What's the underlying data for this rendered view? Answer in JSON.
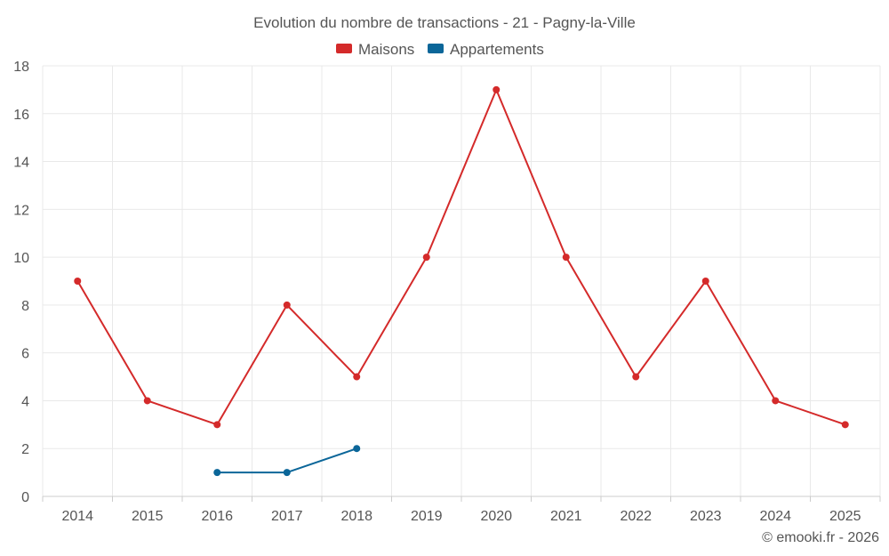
{
  "chart_data": {
    "type": "line",
    "title": "Evolution du nombre de transactions - 21 - Pagny-la-Ville",
    "x": [
      "2014",
      "2015",
      "2016",
      "2017",
      "2018",
      "2019",
      "2020",
      "2021",
      "2022",
      "2023",
      "2024",
      "2025"
    ],
    "ylim": [
      0,
      18
    ],
    "yticks": [
      0,
      2,
      4,
      6,
      8,
      10,
      12,
      14,
      16,
      18
    ],
    "grid": true,
    "legend_position": "top-center",
    "series": [
      {
        "name": "Maisons",
        "color": "#d42a2a",
        "values": [
          9,
          4,
          3,
          8,
          5,
          10,
          17,
          10,
          5,
          9,
          4,
          3
        ]
      },
      {
        "name": "Appartements",
        "color": "#0b6699",
        "values": [
          null,
          null,
          1,
          1,
          2,
          null,
          null,
          null,
          null,
          null,
          null,
          null
        ]
      }
    ],
    "credit": "© emooki.fr - 2026"
  }
}
